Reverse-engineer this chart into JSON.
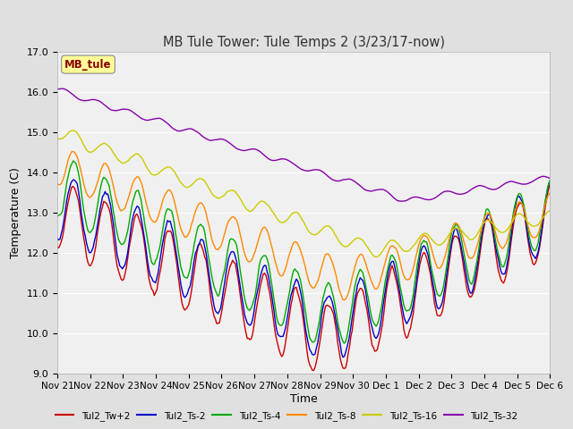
{
  "title": "MB Tule Tower: Tule Temps 2 (3/23/17-now)",
  "xlabel": "Time",
  "ylabel": "Temperature (C)",
  "ylim": [
    9.0,
    17.0
  ],
  "yticks": [
    9.0,
    10.0,
    11.0,
    12.0,
    13.0,
    14.0,
    15.0,
    16.0,
    17.0
  ],
  "xtick_labels": [
    "Nov 21",
    "Nov 22",
    "Nov 23",
    "Nov 24",
    "Nov 25",
    "Nov 26",
    "Nov 27",
    "Nov 28",
    "Nov 29",
    "Nov 30",
    "Dec 1",
    "Dec 2",
    "Dec 3",
    "Dec 4",
    "Dec 5",
    "Dec 6"
  ],
  "annotation_text": "MB_tule",
  "annotation_color": "#8B0000",
  "annotation_bg": "#FFFF99",
  "colors": {
    "Tul2_Tw+2": "#CC0000",
    "Tul2_Ts-2": "#0000CC",
    "Tul2_Ts-4": "#00AA00",
    "Tul2_Ts-8": "#FF8800",
    "Tul2_Ts-16": "#CCCC00",
    "Tul2_Ts-32": "#8800AA"
  },
  "bg_color": "#E0E0E0",
  "plot_bg": "#F0F0F0",
  "grid_color": "#FFFFFF"
}
